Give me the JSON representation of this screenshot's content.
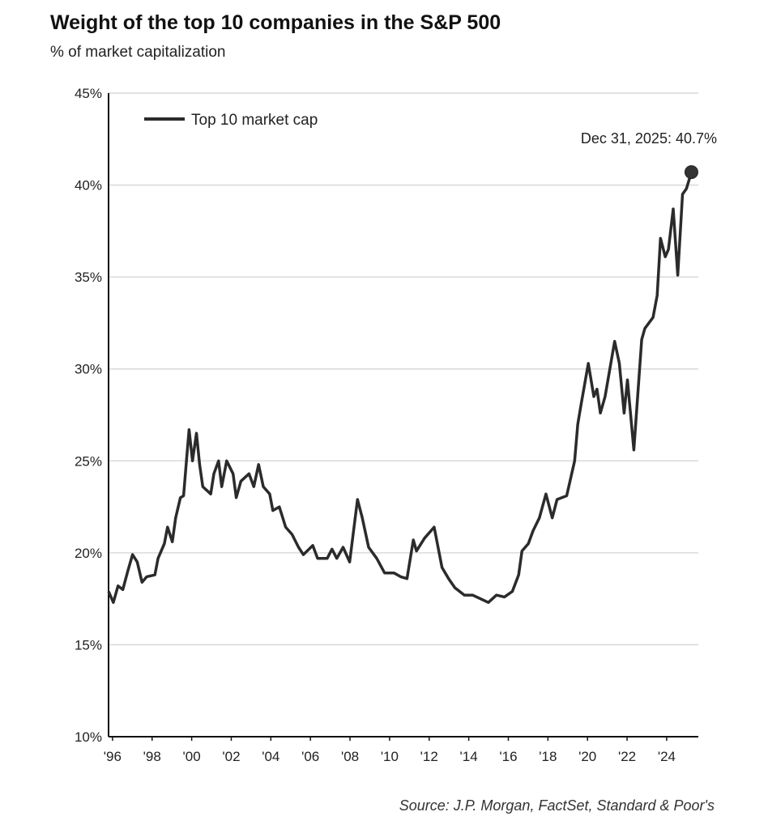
{
  "chart_data": {
    "type": "line",
    "title": "Weight of the top 10 companies in the S&P 500",
    "subtitle": "% of market capitalization",
    "xlabel": "",
    "ylabel": "",
    "ylim": [
      10,
      45
    ],
    "xlim": [
      1995.8,
      2025.6
    ],
    "grid": true,
    "legend_position": "top-left",
    "y_ticks": [
      10,
      15,
      20,
      25,
      30,
      35,
      40,
      45
    ],
    "y_tick_labels": [
      "10%",
      "15%",
      "20%",
      "25%",
      "30%",
      "35%",
      "40%",
      "45%"
    ],
    "x_ticks": [
      1996,
      1998,
      2000,
      2002,
      2004,
      2006,
      2008,
      2010,
      2012,
      2014,
      2016,
      2018,
      2020,
      2022,
      2024
    ],
    "x_tick_labels": [
      "'96",
      "'98",
      "'00",
      "'02",
      "'04",
      "'06",
      "'08",
      "'10",
      "'12",
      "'14",
      "'16",
      "'18",
      "'20",
      "'22",
      "'24"
    ],
    "series": [
      {
        "name": "Top 10 market cap",
        "color": "#2b2b2b",
        "x": [
          1995.8,
          1996.04,
          1996.28,
          1996.52,
          1996.77,
          1997.01,
          1997.25,
          1997.49,
          1997.73,
          1998.14,
          1998.3,
          1998.62,
          1998.78,
          1999.02,
          1999.19,
          1999.43,
          1999.59,
          1999.76,
          1999.87,
          2000.04,
          2000.24,
          2000.4,
          2000.56,
          2000.96,
          2001.12,
          2001.36,
          2001.52,
          2001.77,
          2002.09,
          2002.25,
          2002.49,
          2002.9,
          2003.14,
          2003.38,
          2003.62,
          2003.94,
          2004.1,
          2004.43,
          2004.75,
          2005.07,
          2005.4,
          2005.64,
          2006.12,
          2006.36,
          2006.85,
          2007.09,
          2007.33,
          2007.65,
          2007.98,
          2008.38,
          2008.62,
          2008.94,
          2009.35,
          2009.75,
          2010.23,
          2010.56,
          2010.88,
          2011.2,
          2011.36,
          2011.77,
          2012.25,
          2012.65,
          2012.98,
          2013.3,
          2013.78,
          2014.19,
          2014.59,
          2014.99,
          2015.4,
          2015.8,
          2016.2,
          2016.52,
          2016.69,
          2017.01,
          2017.25,
          2017.57,
          2017.9,
          2018.22,
          2018.46,
          2018.95,
          2019.35,
          2019.51,
          2019.68,
          2020.04,
          2020.32,
          2020.48,
          2020.65,
          2020.89,
          2021.13,
          2021.37,
          2021.61,
          2021.85,
          2022.02,
          2022.34,
          2022.74,
          2022.9,
          2023.31,
          2023.52,
          2023.69,
          2023.93,
          2024.09,
          2024.33,
          2024.56,
          2024.8,
          2025.0,
          2025.25
        ],
        "y": [
          17.9,
          17.3,
          18.2,
          18.0,
          19.0,
          19.9,
          19.5,
          18.4,
          18.7,
          18.8,
          19.7,
          20.5,
          21.4,
          20.6,
          21.9,
          23.0,
          23.1,
          25.3,
          26.7,
          25.0,
          26.5,
          24.8,
          23.6,
          23.2,
          24.3,
          25.0,
          23.6,
          25.0,
          24.3,
          23.0,
          23.9,
          24.3,
          23.6,
          24.8,
          23.6,
          23.2,
          22.3,
          22.5,
          21.4,
          21.0,
          20.3,
          19.9,
          20.4,
          19.7,
          19.7,
          20.2,
          19.7,
          20.3,
          19.5,
          22.9,
          21.9,
          20.3,
          19.7,
          18.9,
          18.9,
          18.7,
          18.6,
          20.7,
          20.1,
          20.8,
          21.4,
          19.2,
          18.6,
          18.1,
          17.7,
          17.7,
          17.5,
          17.3,
          17.7,
          17.6,
          17.9,
          18.8,
          20.1,
          20.5,
          21.2,
          21.9,
          23.2,
          21.9,
          22.9,
          23.1,
          25.0,
          27.0,
          28.1,
          30.3,
          28.5,
          28.9,
          27.6,
          28.5,
          30.0,
          31.5,
          30.3,
          27.6,
          29.4,
          25.6,
          31.6,
          32.2,
          32.8,
          34.0,
          37.1,
          36.1,
          36.5,
          38.7,
          35.1,
          39.5,
          39.8,
          40.7
        ]
      }
    ],
    "annotation": {
      "text": "Dec 31, 2025: 40.7%",
      "x": 2025.25,
      "y": 40.7
    }
  },
  "source": "Source: J.P. Morgan, FactSet, Standard & Poor's"
}
